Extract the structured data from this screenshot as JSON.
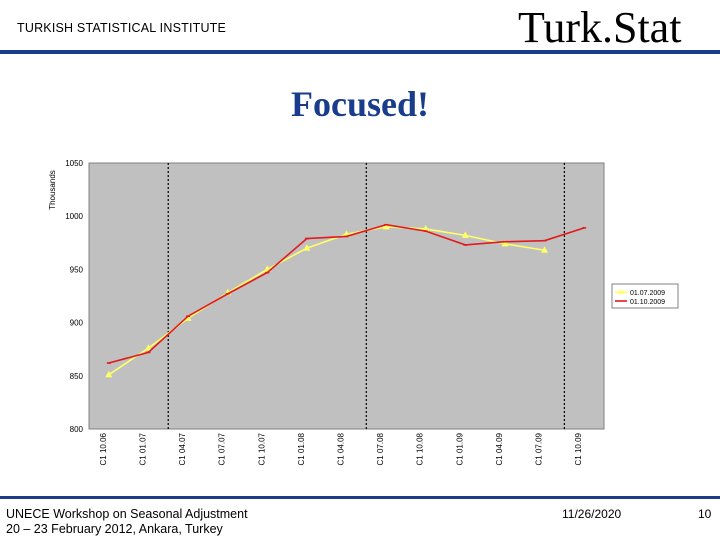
{
  "header": {
    "org": "TURKISH STATISTICAL INSTITUTE",
    "brand": "Turk.Stat"
  },
  "slide": {
    "title": "Focused!"
  },
  "footer": {
    "line1": "UNECE Workshop on Seasonal Adjustment",
    "line2": "20 – 23 February 2012, Ankara, Turkey",
    "date": "11/26/2020",
    "page": "10"
  },
  "colors": {
    "accent": "#1a3c8c",
    "plot_bg": "#c0c0c0",
    "series1": "#ffff66",
    "series2": "#e31a1c"
  },
  "chart_data": {
    "type": "line",
    "ylabel": "Thousands",
    "ylim": [
      800,
      1050
    ],
    "yticks": [
      "1050",
      "1000",
      "950",
      "900",
      "850",
      "800"
    ],
    "ytick_values": [
      1050,
      1000,
      950,
      900,
      850,
      800
    ],
    "categories": [
      "C1 10.06",
      "C1 01.07",
      "C1 04.07",
      "C1 07.07",
      "C1 10.07",
      "C1 01.08",
      "C1 04.08",
      "C1 07.08",
      "C1 10.08",
      "C1 01.09",
      "C1 04.09",
      "C1 07.09",
      "C1 10.09"
    ],
    "vertical_dividers_after": [
      "C1 01.07",
      "C1 04.08",
      "C1 07.09"
    ],
    "grid": false,
    "legend_position": "right",
    "series": [
      {
        "name": "01.07.2009",
        "color": "#ffff66",
        "marker": "triangle",
        "values": [
          851,
          876,
          904,
          928,
          950,
          970,
          983,
          990,
          988,
          982,
          974,
          968,
          null
        ]
      },
      {
        "name": "01.10.2009",
        "color": "#e31a1c",
        "marker": "dash",
        "values": [
          862,
          872,
          906,
          927,
          947,
          979,
          981,
          992,
          986,
          973,
          976,
          977,
          989
        ]
      }
    ]
  }
}
